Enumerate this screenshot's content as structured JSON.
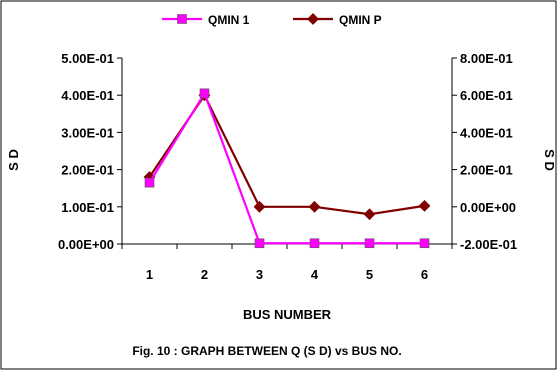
{
  "chart_data": {
    "type": "line",
    "title": "",
    "caption": "Fig. 10  : GRAPH BETWEEN Q (S D) vs BUS NO.",
    "xlabel": "BUS NUMBER",
    "ylabel_left": "S D",
    "ylabel_right": "S D",
    "categories": [
      "1",
      "2",
      "3",
      "4",
      "5",
      "6"
    ],
    "y_left": {
      "min": 0.0,
      "max": 0.5,
      "step": 0.1,
      "tick_labels": [
        "0.00E+00",
        "1.00E-01",
        "2.00E-01",
        "3.00E-01",
        "4.00E-01",
        "5.00E-01"
      ]
    },
    "y_right": {
      "min": -0.2,
      "max": 0.8,
      "step": 0.2,
      "tick_labels": [
        "-2.00E-01",
        "0.00E+00",
        "2.00E-01",
        "4.00E-01",
        "6.00E-01",
        "8.00E-01"
      ]
    },
    "legend_position": "top",
    "grid": false,
    "series": [
      {
        "name": "QMIN 1",
        "axis": "left",
        "color": "#FF00FF",
        "marker": "square",
        "values": [
          0.165,
          0.405,
          0.002,
          0.002,
          0.002,
          0.002
        ]
      },
      {
        "name": "QMIN P",
        "axis": "right",
        "color": "#800000",
        "marker": "diamond",
        "values": [
          0.16,
          0.6,
          0.0,
          0.0,
          -0.04,
          0.005
        ]
      }
    ]
  }
}
